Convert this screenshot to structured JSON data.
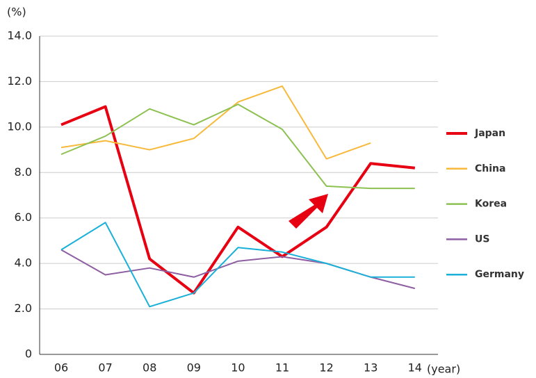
{
  "chart_data": {
    "type": "line",
    "y_unit": "(%)",
    "x_unit": "(year)",
    "categories": [
      "06",
      "07",
      "08",
      "09",
      "10",
      "11",
      "12",
      "13",
      "14"
    ],
    "series": [
      {
        "name": "Japan",
        "color": "#e60012",
        "values": [
          10.1,
          10.9,
          4.2,
          2.7,
          5.6,
          4.3,
          5.6,
          8.4,
          8.2
        ]
      },
      {
        "name": "China",
        "color": "#f7b93a",
        "values": [
          9.1,
          9.4,
          9.0,
          9.5,
          11.1,
          11.8,
          8.6,
          9.3,
          null
        ]
      },
      {
        "name": "Korea",
        "color": "#8cc152",
        "values": [
          8.8,
          9.6,
          10.8,
          10.1,
          11.0,
          9.9,
          7.4,
          7.3,
          7.3
        ]
      },
      {
        "name": "US",
        "color": "#8e5ea2",
        "values": [
          4.6,
          3.5,
          3.8,
          3.4,
          4.1,
          4.3,
          4.0,
          3.4,
          2.9
        ]
      },
      {
        "name": "Germany",
        "color": "#1ab0d8",
        "values": [
          4.6,
          5.8,
          2.1,
          2.7,
          4.7,
          4.5,
          4.0,
          3.4,
          3.4
        ]
      }
    ],
    "ylim": [
      0,
      14
    ],
    "yticks": [
      0,
      {
        "value": 2,
        "label": "2.0"
      },
      {
        "value": 4,
        "label": "4.0"
      },
      {
        "value": 6,
        "label": "6.0"
      },
      {
        "value": 8,
        "label": "8.0"
      },
      {
        "value": 10,
        "label": "10.0"
      },
      {
        "value": 12,
        "label": "12.0"
      },
      {
        "value": 14,
        "label": "14.0"
      }
    ],
    "grid": true,
    "legend": "right"
  }
}
